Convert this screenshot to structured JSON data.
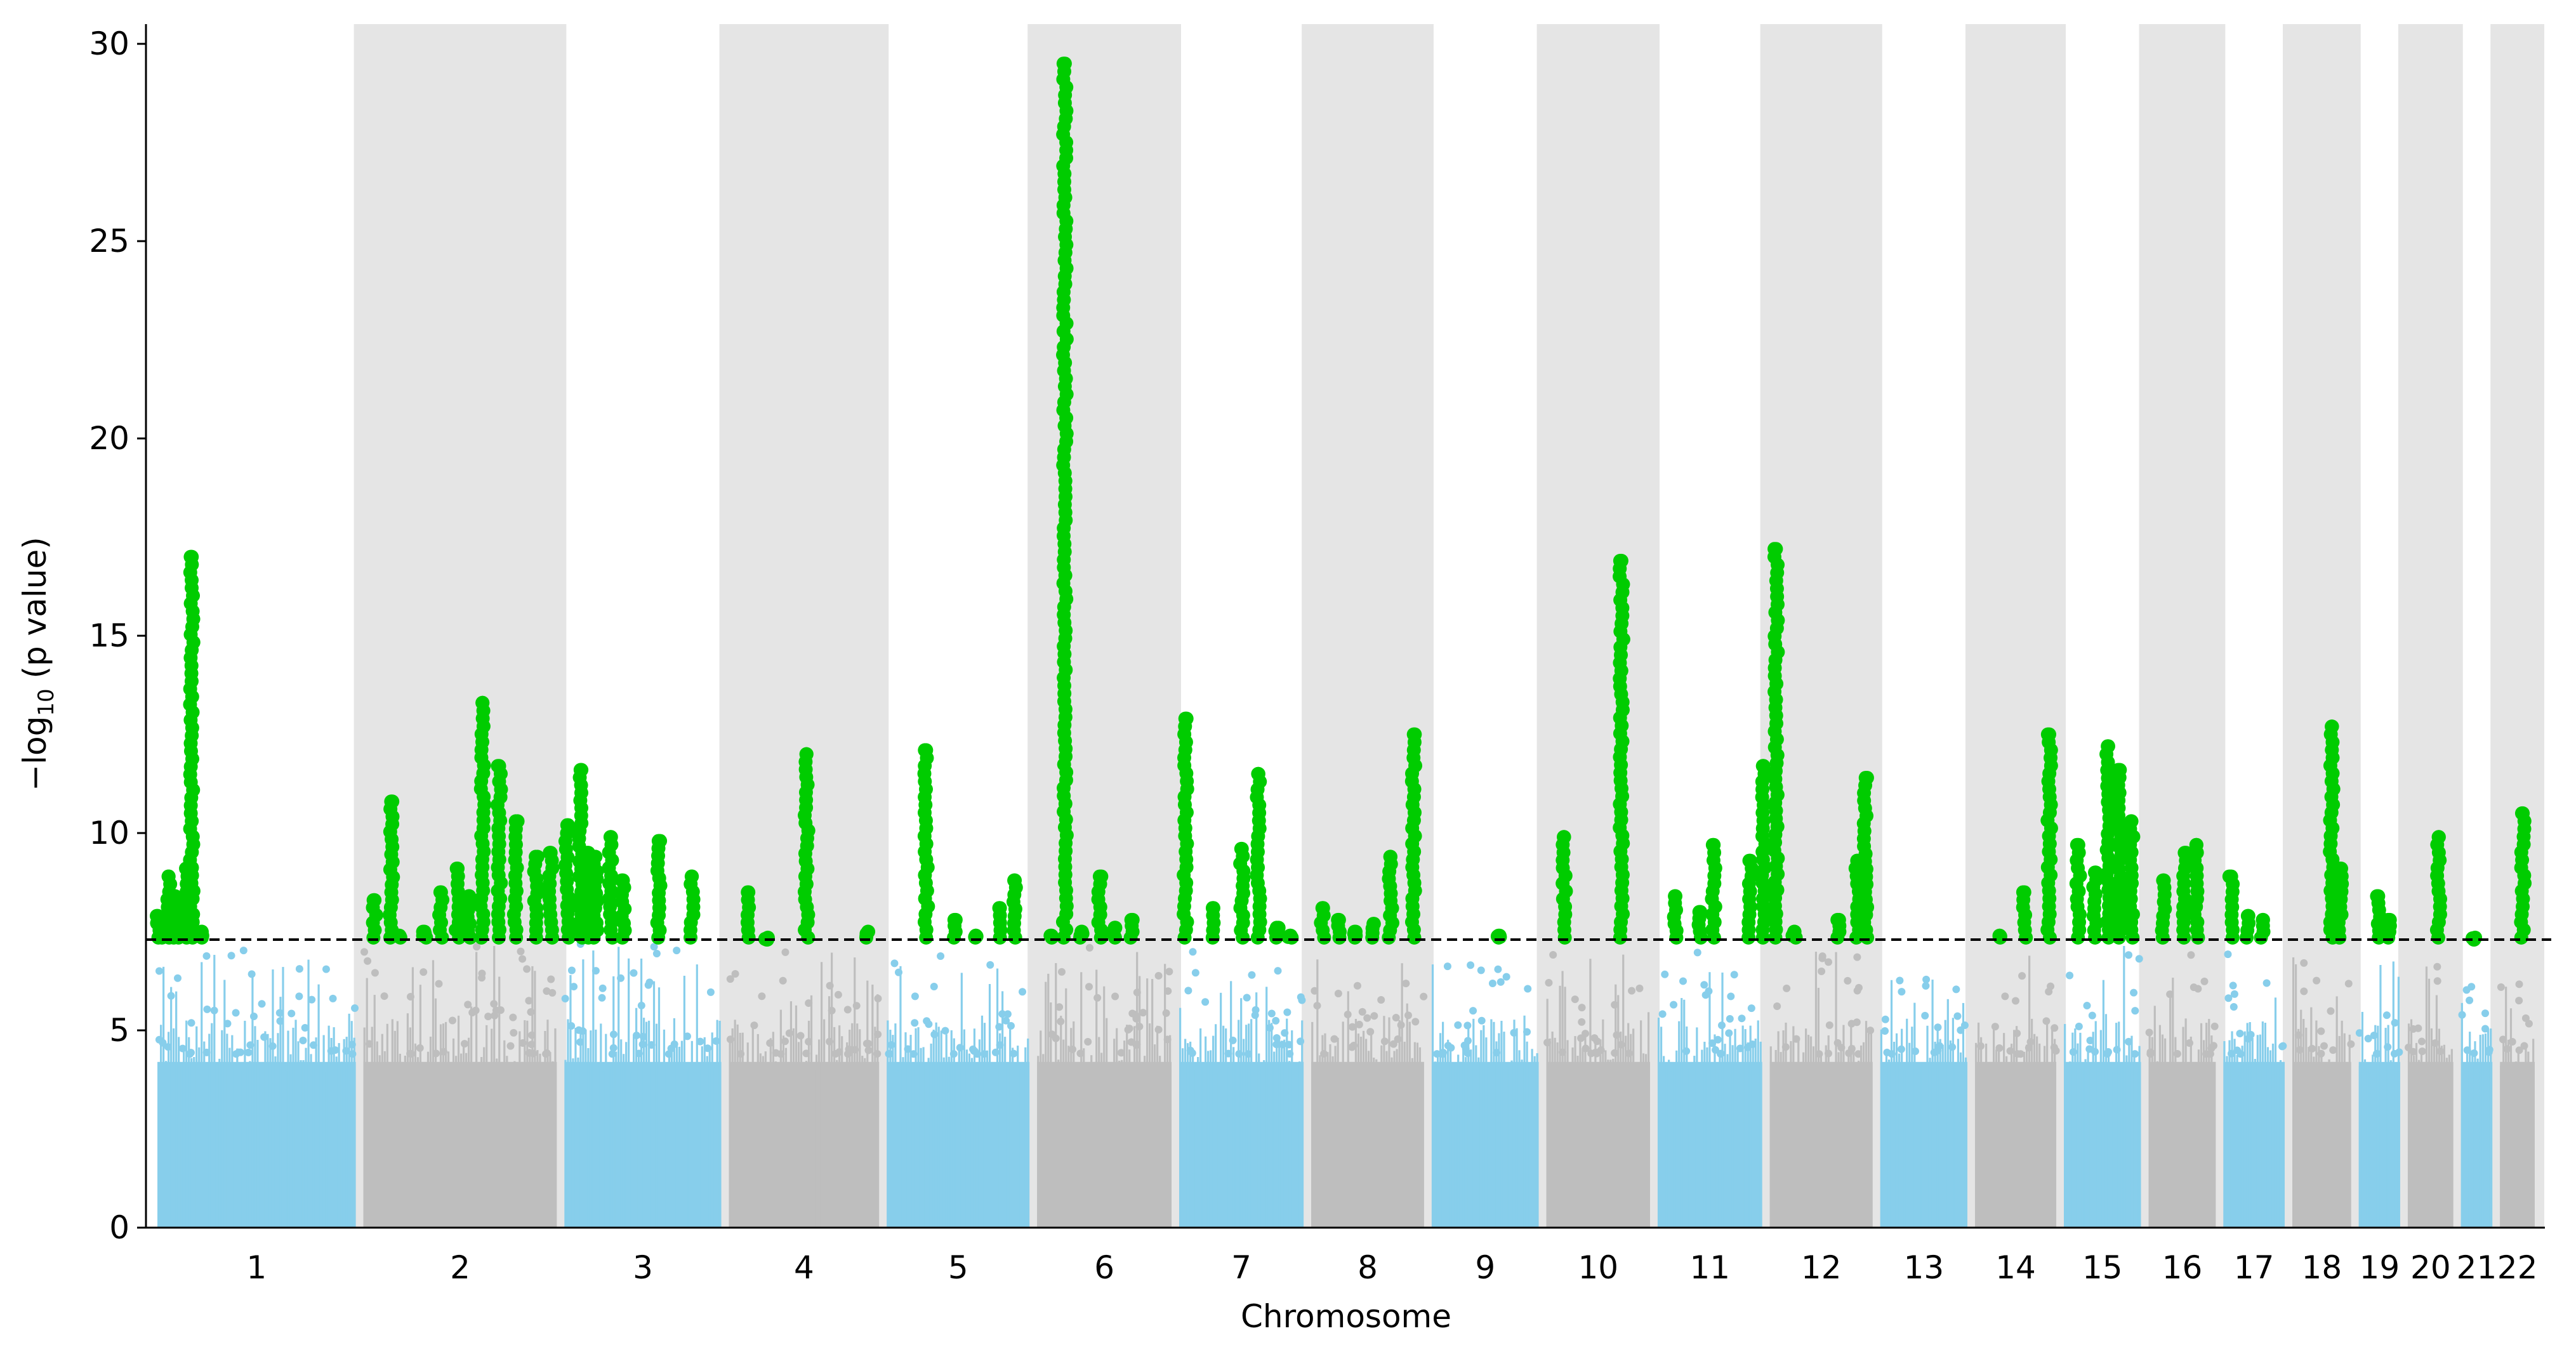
{
  "chart_data": {
    "type": "scatter",
    "subtype": "manhattan",
    "title": "",
    "xlabel": "Chromosome",
    "ylabel_prefix": "−log",
    "ylabel_sub": "10",
    "ylabel_suffix": " (p value)",
    "ylim": [
      0,
      30.5
    ],
    "yticks": [
      0,
      5,
      10,
      15,
      20,
      25,
      30
    ],
    "threshold": 7.3,
    "threshold_style": "dashed",
    "grid": false,
    "legend": "none",
    "colors": {
      "odd_chromosome": "#87ceeb",
      "even_chromosome": "#bebebe",
      "significant": "#00cc00",
      "even_band": "#e5e5e5",
      "threshold_line": "#000000"
    },
    "chromosomes": [
      {
        "label": "1",
        "start": 0,
        "end": 248,
        "max_nonsig": 7.1,
        "peaks": [
          [
            5,
            7.9
          ],
          [
            10,
            7.6
          ],
          [
            18,
            8.9
          ],
          [
            24,
            8.4
          ],
          [
            32,
            8.1
          ],
          [
            39,
            9.1
          ],
          [
            46,
            17.0
          ],
          [
            58,
            7.5
          ]
        ]
      },
      {
        "label": "2",
        "start": 248,
        "end": 490,
        "max_nonsig": 7.2,
        "peaks": [
          [
            18,
            8.3
          ],
          [
            38,
            10.8
          ],
          [
            48,
            7.4
          ],
          [
            78,
            7.5
          ],
          [
            98,
            8.5
          ],
          [
            118,
            9.1
          ],
          [
            132,
            8.4
          ],
          [
            148,
            13.3
          ],
          [
            168,
            11.7
          ],
          [
            188,
            10.3
          ],
          [
            212,
            9.4
          ],
          [
            230,
            9.5
          ]
        ]
      },
      {
        "label": "3",
        "start": 490,
        "end": 688,
        "max_nonsig": 7.2,
        "peaks": [
          [
            8,
            10.2
          ],
          [
            24,
            11.6
          ],
          [
            32,
            9.5
          ],
          [
            42,
            9.4
          ],
          [
            60,
            9.9
          ],
          [
            75,
            8.8
          ],
          [
            118,
            9.8
          ],
          [
            158,
            8.9
          ]
        ]
      },
      {
        "label": "4",
        "start": 688,
        "end": 878,
        "max_nonsig": 7.0,
        "peaks": [
          [
            28,
            8.5
          ],
          [
            50,
            7.3
          ],
          [
            98,
            12.0
          ],
          [
            172,
            7.5
          ]
        ]
      },
      {
        "label": "5",
        "start": 878,
        "end": 1059,
        "max_nonsig": 6.9,
        "peaks": [
          [
            52,
            12.1
          ],
          [
            86,
            7.8
          ],
          [
            112,
            7.4
          ],
          [
            140,
            8.1
          ],
          [
            158,
            8.8
          ]
        ]
      },
      {
        "label": "6",
        "start": 1059,
        "end": 1230,
        "max_nonsig": 7.1,
        "peaks": [
          [
            22,
            7.4
          ],
          [
            38,
            29.5
          ],
          [
            58,
            7.5
          ],
          [
            80,
            8.9
          ],
          [
            98,
            7.6
          ],
          [
            118,
            7.8
          ]
        ]
      },
      {
        "label": "7",
        "start": 1230,
        "end": 1389,
        "max_nonsig": 7.0,
        "peaks": [
          [
            12,
            12.9
          ],
          [
            45,
            8.1
          ],
          [
            80,
            9.6
          ],
          [
            100,
            11.5
          ],
          [
            122,
            7.6
          ],
          [
            138,
            7.4
          ]
        ]
      },
      {
        "label": "8",
        "start": 1389,
        "end": 1534,
        "max_nonsig": 7.1,
        "peaks": [
          [
            18,
            8.1
          ],
          [
            38,
            7.8
          ],
          [
            58,
            7.5
          ],
          [
            80,
            7.7
          ],
          [
            100,
            9.4
          ],
          [
            128,
            12.5
          ]
        ]
      },
      {
        "label": "9",
        "start": 1534,
        "end": 1672,
        "max_nonsig": 6.7,
        "peaks": [
          [
            85,
            7.4
          ]
        ]
      },
      {
        "label": "10",
        "start": 1672,
        "end": 1806,
        "max_nonsig": 7.0,
        "peaks": [
          [
            26,
            9.9
          ],
          [
            95,
            16.9
          ]
        ]
      },
      {
        "label": "11",
        "start": 1806,
        "end": 1941,
        "max_nonsig": 7.0,
        "peaks": [
          [
            26,
            8.4
          ],
          [
            56,
            8.0
          ],
          [
            72,
            9.7
          ],
          [
            116,
            9.3
          ],
          [
            132,
            11.7
          ]
        ]
      },
      {
        "label": "12",
        "start": 1941,
        "end": 2074,
        "max_nonsig": 7.1,
        "peaks": [
          [
            12,
            17.2
          ],
          [
            34,
            7.5
          ],
          [
            88,
            7.8
          ],
          [
            110,
            9.3
          ],
          [
            120,
            11.4
          ]
        ]
      },
      {
        "label": "13",
        "start": 2074,
        "end": 2188,
        "max_nonsig": 6.3,
        "peaks": []
      },
      {
        "label": "14",
        "start": 2188,
        "end": 2295,
        "max_nonsig": 7.1,
        "peaks": [
          [
            34,
            7.4
          ],
          [
            64,
            8.5
          ],
          [
            94,
            12.5
          ]
        ]
      },
      {
        "label": "15",
        "start": 2295,
        "end": 2397,
        "max_nonsig": 7.2,
        "peaks": [
          [
            22,
            9.7
          ],
          [
            42,
            9.0
          ],
          [
            58,
            12.2
          ],
          [
            72,
            11.6
          ],
          [
            86,
            10.3
          ]
        ]
      },
      {
        "label": "16",
        "start": 2397,
        "end": 2487,
        "max_nonsig": 7.2,
        "peaks": [
          [
            22,
            8.8
          ],
          [
            48,
            9.5
          ],
          [
            62,
            9.7
          ]
        ]
      },
      {
        "label": "17",
        "start": 2487,
        "end": 2570,
        "max_nonsig": 7.1,
        "peaks": [
          [
            14,
            8.9
          ],
          [
            34,
            7.9
          ],
          [
            52,
            7.8
          ]
        ]
      },
      {
        "label": "18",
        "start": 2570,
        "end": 2650,
        "max_nonsig": 7.0,
        "peaks": [
          [
            52,
            12.7
          ],
          [
            62,
            9.1
          ]
        ]
      },
      {
        "label": "19",
        "start": 2650,
        "end": 2709,
        "max_nonsig": 7.0,
        "peaks": [
          [
            28,
            8.4
          ],
          [
            42,
            7.8
          ]
        ]
      },
      {
        "label": "20",
        "start": 2709,
        "end": 2773,
        "max_nonsig": 6.9,
        "peaks": [
          [
            42,
            9.9
          ]
        ]
      },
      {
        "label": "21",
        "start": 2773,
        "end": 2820,
        "max_nonsig": 6.3,
        "peaks": [
          [
            20,
            7.3
          ]
        ]
      },
      {
        "label": "22",
        "start": 2820,
        "end": 2871,
        "max_nonsig": 6.5,
        "peaks": [
          [
            32,
            10.5
          ]
        ]
      }
    ]
  }
}
